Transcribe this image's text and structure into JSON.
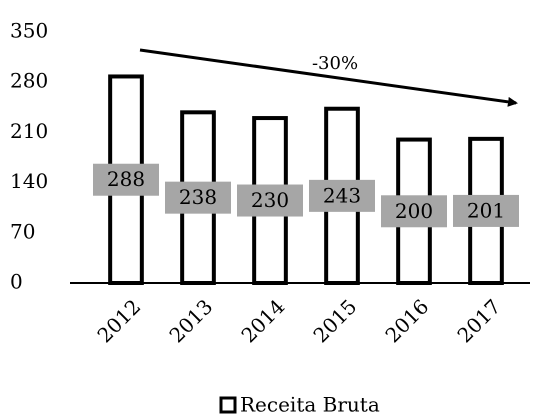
{
  "chart_data": {
    "type": "bar",
    "categories": [
      "2012",
      "2013",
      "2014",
      "2015",
      "2016",
      "2017"
    ],
    "series": [
      {
        "name": "Receita Bruta",
        "color": "#ffffff",
        "values": [
          288,
          238,
          230,
          243,
          200,
          201
        ]
      }
    ],
    "ylim": [
      0,
      350
    ],
    "yticks": [
      0,
      70,
      140,
      210,
      280,
      350
    ],
    "annotation": "-30%",
    "legend": "bottom"
  }
}
